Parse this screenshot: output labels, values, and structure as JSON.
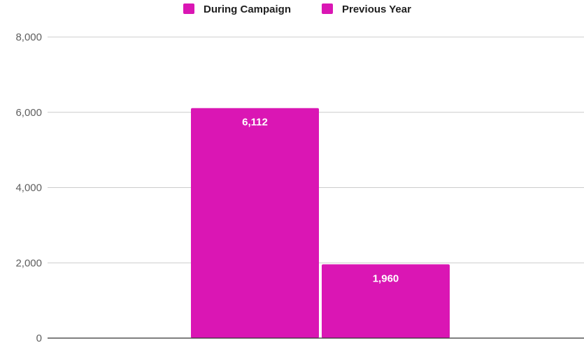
{
  "chart_data": {
    "type": "bar",
    "categories": [
      ""
    ],
    "series": [
      {
        "name": "During Campaign",
        "values": [
          6112
        ],
        "data_label": "6,112",
        "color": "#DA16B4"
      },
      {
        "name": "Previous Year",
        "values": [
          1960
        ],
        "data_label": "1,960",
        "color": "#DA16B4"
      }
    ],
    "ylim": [
      0,
      8000
    ],
    "yticks": [
      0,
      2000,
      4000,
      6000,
      8000
    ],
    "ytick_labels": [
      "0",
      "2,000",
      "4,000",
      "6,000",
      "8,000"
    ],
    "grid": true,
    "legend_position": "top-center",
    "title": "",
    "xlabel": "",
    "ylabel": ""
  }
}
